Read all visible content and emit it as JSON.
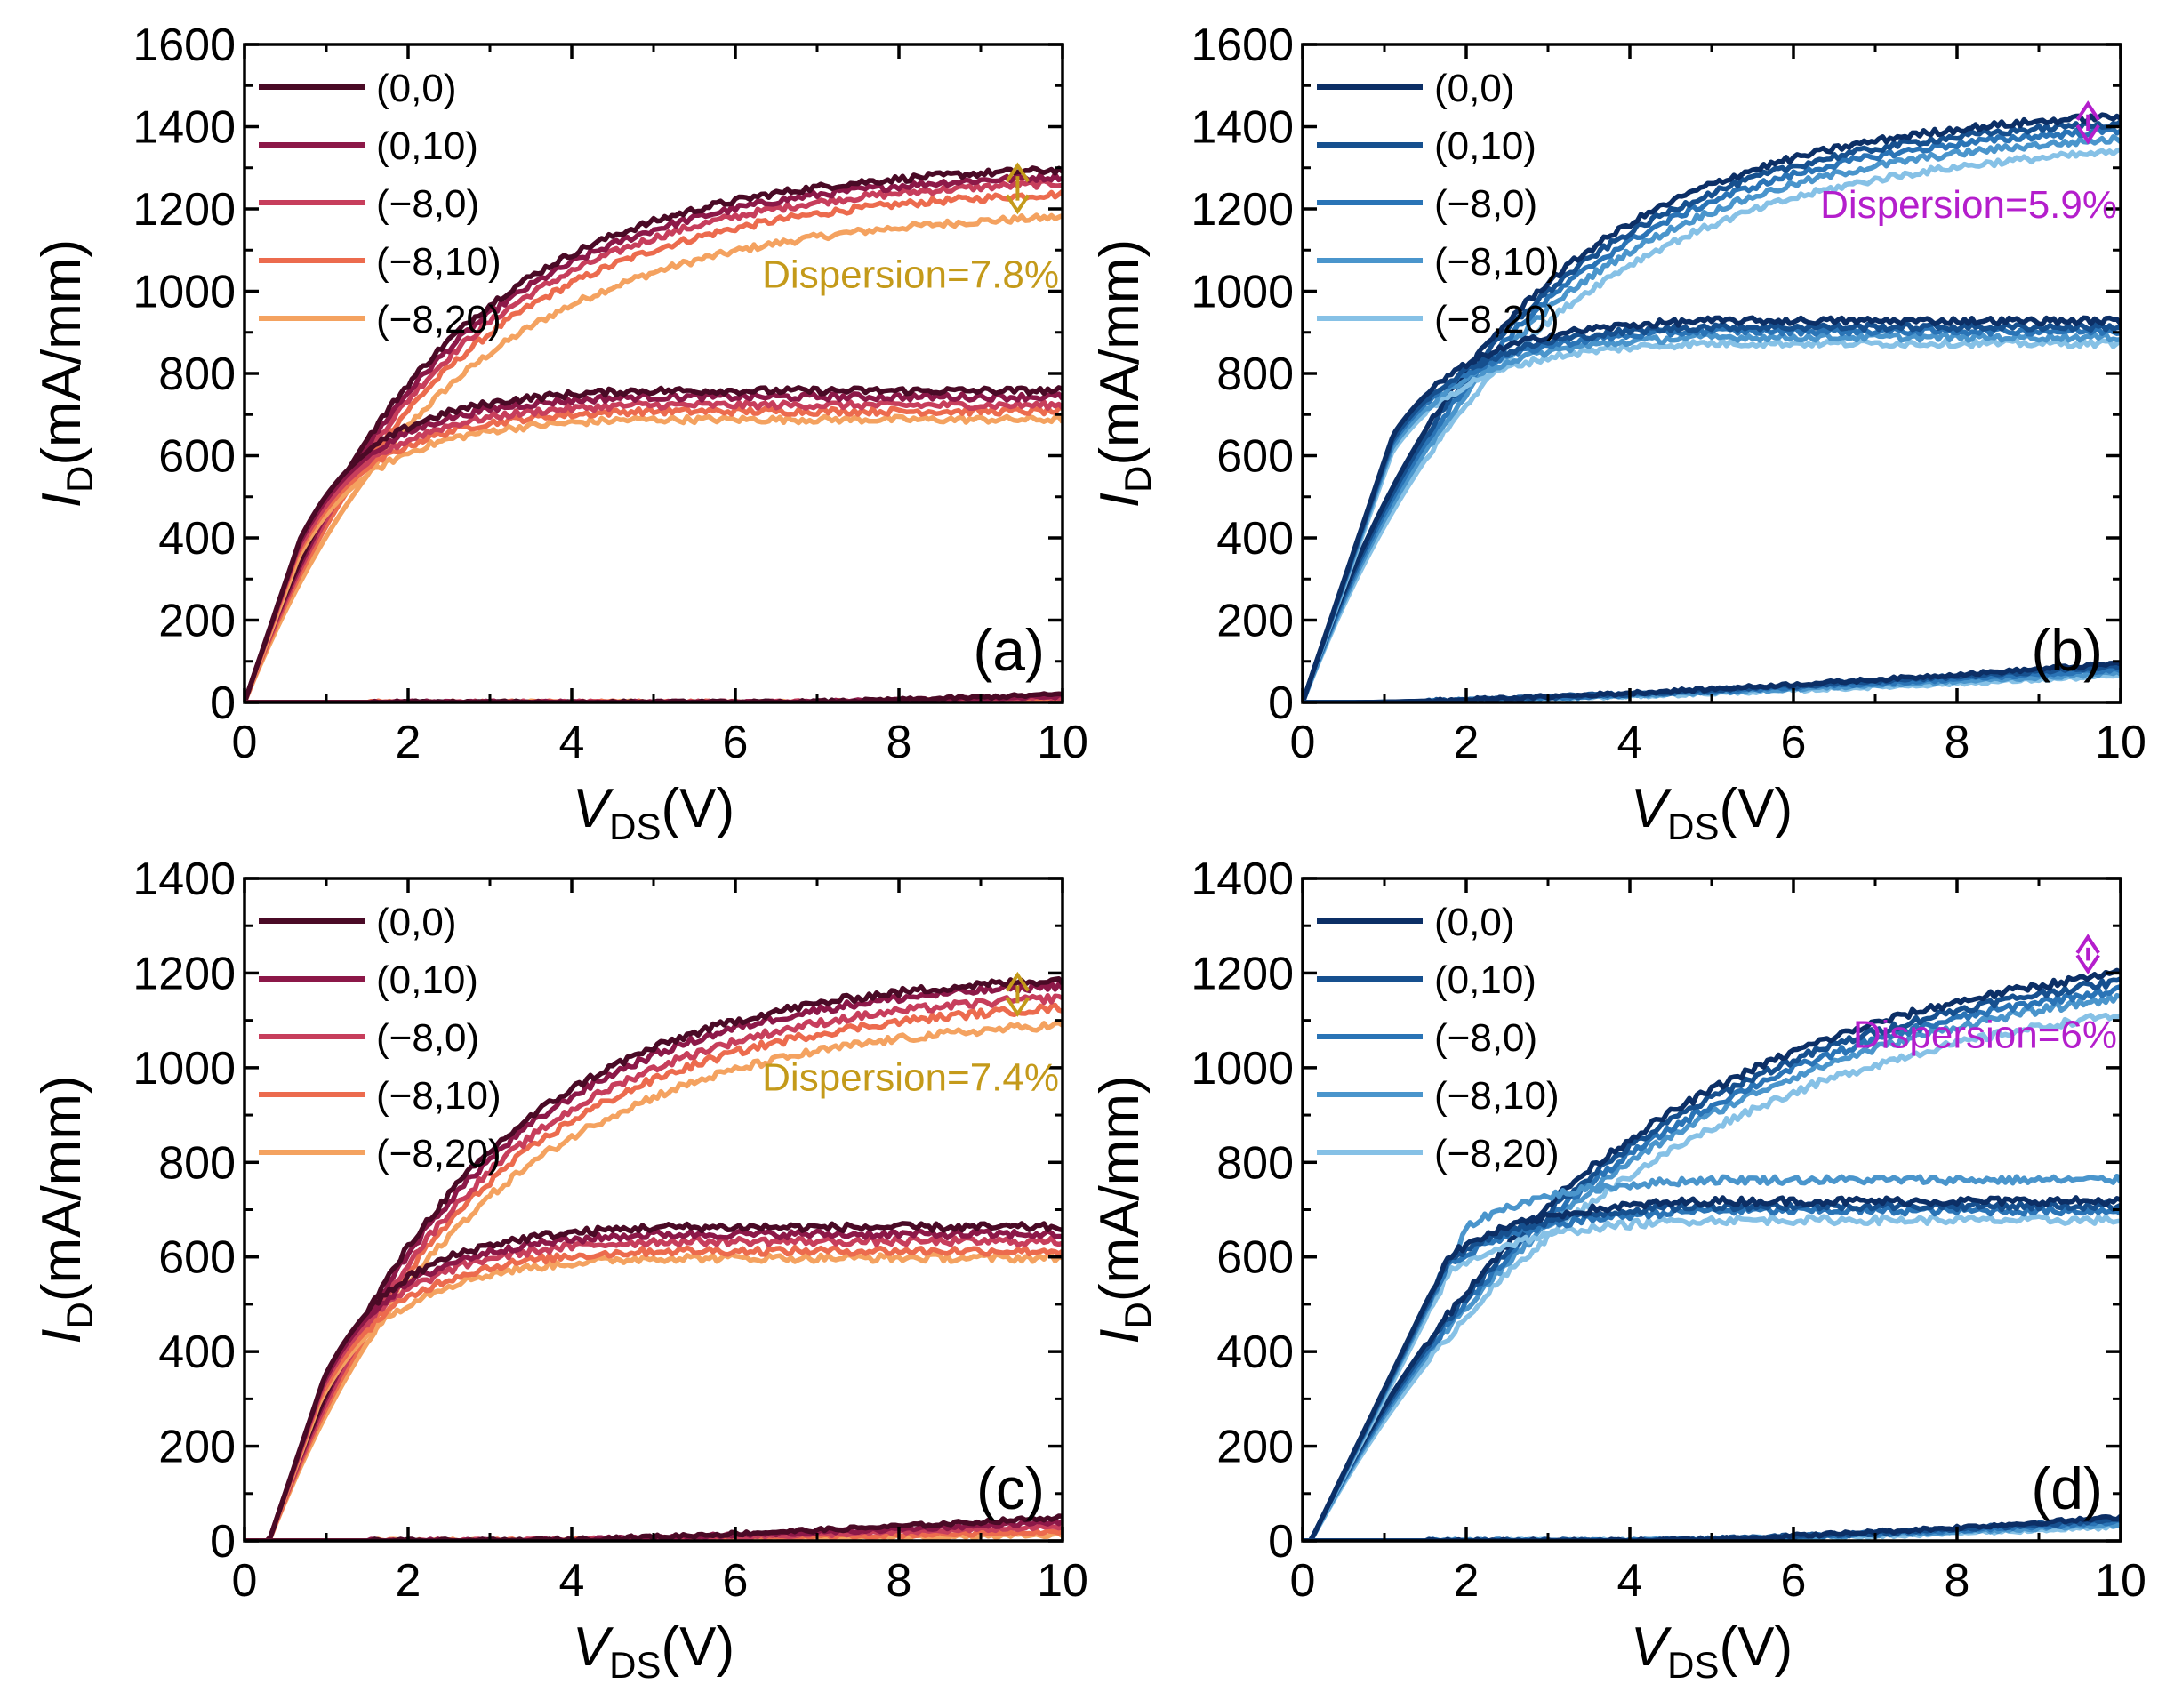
{
  "figure": {
    "palettes": {
      "warm": [
        "#4a0a26",
        "#8c1848",
        "#c73e5c",
        "#ec6b4e",
        "#f4a260"
      ],
      "cool": [
        "#0c2f66",
        "#16508f",
        "#2a74b6",
        "#4a95cc",
        "#86c1e6"
      ]
    },
    "dispersion_color_warm": "#c49a1a",
    "dispersion_color_cool": "#b41ecc"
  },
  "chart_data": [
    {
      "id": "a",
      "type": "line",
      "panel_label": "(a)",
      "xlabel": {
        "main": "V",
        "sub": "DS",
        "unit": "(V)"
      },
      "ylabel": {
        "main": "I",
        "sub": "D",
        "unit": "(mA/mm)"
      },
      "xlim": [
        0,
        10
      ],
      "ylim": [
        0,
        1600
      ],
      "xticks": [
        0,
        2,
        4,
        6,
        8,
        10
      ],
      "yticks": [
        0,
        200,
        400,
        600,
        800,
        1000,
        1200,
        1400,
        1600
      ],
      "palette": "warm",
      "legend": [
        "(0,0)",
        "(0,10)",
        "(−8,0)",
        "(−8,10)",
        "(−8,20)"
      ],
      "dispersion": {
        "text": "Dispersion=7.8%",
        "x": 9.45,
        "y_top": 1310,
        "y_bottom": 1190
      },
      "curves": [
        {
          "knee": 2.0,
          "k_on": 0.45,
          "vt": 0.0,
          "sat": [
            1310,
            1295,
            1280,
            1255,
            1200
          ]
        },
        {
          "knee": 2.0,
          "k_on": 0.45,
          "vt": 0.0,
          "sat": [
            750,
            735,
            715,
            700,
            680
          ]
        },
        {
          "knee": 6.6,
          "k_on": 0.15,
          "vt": 6.4,
          "sat": [
            20,
            15,
            12,
            10,
            8
          ]
        }
      ]
    },
    {
      "id": "b",
      "type": "line",
      "panel_label": "(b)",
      "xlabel": {
        "main": "V",
        "sub": "DS",
        "unit": "(V)"
      },
      "ylabel": {
        "main": "I",
        "sub": "D",
        "unit": "(mA/mm)"
      },
      "xlim": [
        0,
        10
      ],
      "ylim": [
        0,
        1600
      ],
      "xticks": [
        0,
        2,
        4,
        6,
        8,
        10
      ],
      "yticks": [
        0,
        200,
        400,
        600,
        800,
        1000,
        1200,
        1400,
        1600
      ],
      "palette": "cool",
      "legend": [
        "(0,0)",
        "(0,10)",
        "(−8,0)",
        "(−8,10)",
        "(−8,20)"
      ],
      "dispersion": {
        "text": "Dispersion=5.9%",
        "x": 9.6,
        "y_top": 1460,
        "y_bottom": 1360
      },
      "curves": [
        {
          "knee": 2.2,
          "k_on": 0.42,
          "vt": 0.0,
          "sat": [
            1450,
            1435,
            1420,
            1400,
            1370
          ]
        },
        {
          "knee": 2.2,
          "k_on": 0.42,
          "vt": 0.0,
          "sat": [
            920,
            905,
            895,
            880,
            865
          ]
        },
        {
          "knee": 12.0,
          "k_on": 0.0,
          "vt": 0.6,
          "sat": [
            95,
            88,
            80,
            72,
            65
          ]
        }
      ]
    },
    {
      "id": "c",
      "type": "line",
      "panel_label": "(c)",
      "xlabel": {
        "main": "V",
        "sub": "DS",
        "unit": "(V)"
      },
      "ylabel": {
        "main": "I",
        "sub": "D",
        "unit": "(mA/mm)"
      },
      "xlim": [
        0,
        10
      ],
      "ylim": [
        0,
        1400
      ],
      "xticks": [
        0,
        2,
        4,
        6,
        8,
        10
      ],
      "yticks": [
        0,
        200,
        400,
        600,
        800,
        1000,
        1200,
        1400
      ],
      "palette": "warm",
      "legend": [
        "(0,0)",
        "(0,10)",
        "(−8,0)",
        "(−8,10)",
        "(−8,20)"
      ],
      "dispersion": {
        "text": "Dispersion=7.4%",
        "x": 9.45,
        "y_top": 1200,
        "y_bottom": 1110
      },
      "curves": [
        {
          "knee": 2.1,
          "k_on": 0.45,
          "vt": 0.3,
          "sat": [
            1205,
            1195,
            1170,
            1150,
            1115
          ]
        },
        {
          "knee": 2.1,
          "k_on": 0.45,
          "vt": 0.3,
          "sat": [
            655,
            640,
            625,
            605,
            590
          ]
        },
        {
          "knee": 12.0,
          "k_on": 0.0,
          "vt": 3.0,
          "sat": [
            50,
            40,
            30,
            20,
            12
          ]
        }
      ]
    },
    {
      "id": "d",
      "type": "line",
      "panel_label": "(d)",
      "xlabel": {
        "main": "V",
        "sub": "DS",
        "unit": "(V)"
      },
      "ylabel": {
        "main": "I",
        "sub": "D",
        "unit": "(mA/mm)"
      },
      "xlim": [
        0,
        10
      ],
      "ylim": [
        0,
        1400
      ],
      "xticks": [
        0,
        2,
        4,
        6,
        8,
        10
      ],
      "yticks": [
        0,
        200,
        400,
        600,
        800,
        1000,
        1200,
        1400
      ],
      "palette": "cool",
      "legend": [
        "(0,0)",
        "(0,10)",
        "(−8,0)",
        "(−8,10)",
        "(−8,20)"
      ],
      "dispersion": {
        "text": "Dispersion=6%",
        "x": 9.6,
        "y_top": 1280,
        "y_bottom": 1200
      },
      "curves": [
        {
          "knee": 3.2,
          "k_on": 0.5,
          "vt": 0.1,
          "sat": [
            1280,
            1265,
            1250,
            1235,
            1200
          ]
        },
        {
          "knee": 3.2,
          "k_on": 0.5,
          "vt": 0.1,
          "sat": [
            710,
            700,
            690,
            755,
            670
          ]
        },
        {
          "knee": 12.0,
          "k_on": 0.0,
          "vt": 4.0,
          "sat": [
            50,
            45,
            40,
            35,
            30
          ]
        }
      ]
    }
  ]
}
